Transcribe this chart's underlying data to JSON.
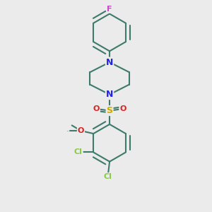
{
  "bg_color": "#ebebeb",
  "bond_color": "#3d7a6b",
  "bond_width": 1.5,
  "atom_colors": {
    "F": "#cc44cc",
    "N": "#2222ee",
    "S": "#ccaa00",
    "O": "#dd2222",
    "Cl": "#88cc44",
    "C": "#3d7a6b"
  },
  "font_size": 9
}
